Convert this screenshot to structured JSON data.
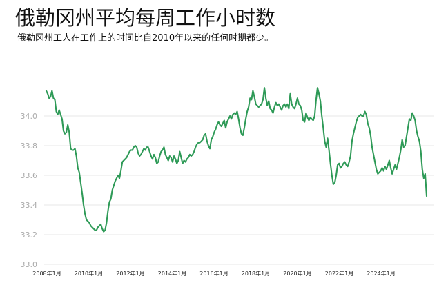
{
  "title": "俄勒冈州平均每周工作小时数",
  "subtitle": "俄勒冈州工人在工作上的时间比自2010年以来的任何时期都少。",
  "colors": {
    "line": "#2e9a57",
    "grid": "#e7e7e7",
    "ytick": "#aaaaaa"
  },
  "chart_data": {
    "type": "line",
    "title": "俄勒冈州平均每周工作小时数",
    "subtitle": "俄勒冈州工人在工作上的时间比自2010年以来的任何时期都少。",
    "xlabel": "",
    "ylabel": "",
    "ylim": [
      33.0,
      34.4
    ],
    "yticks": [
      "33.0",
      "33.2",
      "33.4",
      "33.6",
      "33.8",
      "34.0"
    ],
    "xticks": [
      "2008年1月",
      "2010年1月",
      "2012年1月",
      "2014年1月",
      "2016年1月",
      "2018年1月",
      "2020年1月",
      "2022年1月",
      "2024年1月"
    ],
    "grid": true,
    "legend": "none",
    "x_start": "2008-01",
    "x_end": "2025-03",
    "series": [
      {
        "values": [
          34.17,
          34.15,
          34.12,
          34.13,
          34.17,
          34.12,
          34.11,
          34.03,
          34.01,
          34.04,
          34.01,
          33.98,
          33.9,
          33.88,
          33.89,
          33.94,
          33.89,
          33.78,
          33.77,
          33.77,
          33.78,
          33.73,
          33.65,
          33.62,
          33.55,
          33.48,
          33.4,
          33.34,
          33.3,
          33.29,
          33.28,
          33.26,
          33.25,
          33.24,
          33.23,
          33.23,
          33.25,
          33.26,
          33.27,
          33.24,
          33.22,
          33.23,
          33.28,
          33.36,
          33.42,
          33.44,
          33.5,
          33.53,
          33.56,
          33.58,
          33.6,
          33.58,
          33.63,
          33.69,
          33.7,
          33.71,
          33.72,
          33.74,
          33.76,
          33.77,
          33.77,
          33.79,
          33.8,
          33.79,
          33.75,
          33.73,
          33.74,
          33.76,
          33.78,
          33.77,
          33.79,
          33.79,
          33.76,
          33.73,
          33.71,
          33.74,
          33.72,
          33.68,
          33.69,
          33.73,
          33.76,
          33.77,
          33.79,
          33.74,
          33.72,
          33.7,
          33.73,
          33.72,
          33.69,
          33.73,
          33.71,
          33.68,
          33.7,
          33.76,
          33.72,
          33.68,
          33.7,
          33.69,
          33.71,
          33.72,
          33.74,
          33.73,
          33.74,
          33.76,
          33.79,
          33.81,
          33.82,
          33.82,
          33.83,
          33.84,
          33.87,
          33.88,
          33.83,
          33.8,
          33.78,
          33.84,
          33.86,
          33.89,
          33.91,
          33.94,
          33.96,
          33.94,
          33.93,
          33.95,
          33.97,
          33.92,
          33.96,
          33.98,
          34.0,
          33.98,
          34.01,
          34.02,
          34.01,
          34.03,
          33.98,
          33.92,
          33.88,
          33.87,
          33.92,
          33.98,
          34.03,
          34.06,
          34.12,
          34.11,
          34.17,
          34.13,
          34.08,
          34.07,
          34.06,
          34.07,
          34.08,
          34.11,
          34.19,
          34.12,
          34.07,
          34.1,
          34.05,
          34.04,
          34.02,
          34.06,
          34.09,
          34.07,
          34.08,
          34.06,
          34.04,
          34.07,
          34.08,
          34.06,
          34.08,
          34.05,
          34.15,
          34.08,
          34.06,
          34.05,
          34.08,
          34.12,
          34.08,
          34.07,
          34.04,
          33.97,
          33.96,
          34.02,
          33.99,
          33.97,
          33.99,
          33.98,
          33.97,
          34.0,
          34.11,
          34.19,
          34.15,
          34.1,
          34.0,
          33.92,
          33.83,
          33.79,
          33.85,
          33.77,
          33.68,
          33.6,
          33.54,
          33.55,
          33.6,
          33.67,
          33.68,
          33.65,
          33.66,
          33.68,
          33.69,
          33.67,
          33.66,
          33.69,
          33.73,
          33.83,
          33.88,
          33.92,
          33.96,
          33.99,
          34.0,
          34.01,
          34.0,
          34.0,
          34.03,
          34.01,
          33.95,
          33.92,
          33.87,
          33.79,
          33.74,
          33.69,
          33.64,
          33.61,
          33.62,
          33.63,
          33.65,
          33.63,
          33.66,
          33.64,
          33.67,
          33.7,
          33.65,
          33.61,
          33.64,
          33.67,
          33.64,
          33.68,
          33.72,
          33.77,
          33.84,
          33.79,
          33.8,
          33.86,
          33.92,
          33.98,
          33.97,
          34.02,
          34.0,
          33.97,
          33.9,
          33.86,
          33.83,
          33.76,
          33.64,
          33.58,
          33.61,
          33.46
        ]
      }
    ]
  }
}
